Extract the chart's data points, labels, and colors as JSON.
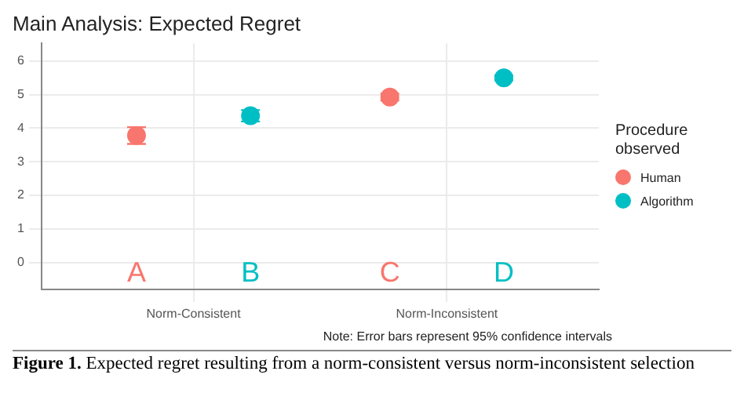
{
  "chart_data": {
    "type": "scatter",
    "title": "Main Analysis: Expected Regret",
    "legend_title": "Procedure observed",
    "categories": [
      "Norm-Consistent",
      "Norm-Inconsistent"
    ],
    "series": [
      {
        "name": "Human",
        "color": "#f8766d",
        "values": [
          3.78,
          4.93
        ],
        "errors": [
          0.25,
          0.1
        ]
      },
      {
        "name": "Algorithm",
        "color": "#00bfc4",
        "values": [
          4.37,
          5.5
        ],
        "errors": [
          0.17,
          0.07
        ]
      }
    ],
    "ylim": [
      -0.8,
      6.53
    ],
    "yticks": [
      0,
      1,
      2,
      3,
      4,
      5,
      6
    ],
    "grid": true,
    "legend": "right",
    "annotations": [
      "A",
      "B",
      "C",
      "D",
      "Note: Error bars represent 95% confidence intervals",
      "Figure 1. Expected regret resulting from a norm-consistent versus norm-inconsistent selection"
    ]
  }
}
